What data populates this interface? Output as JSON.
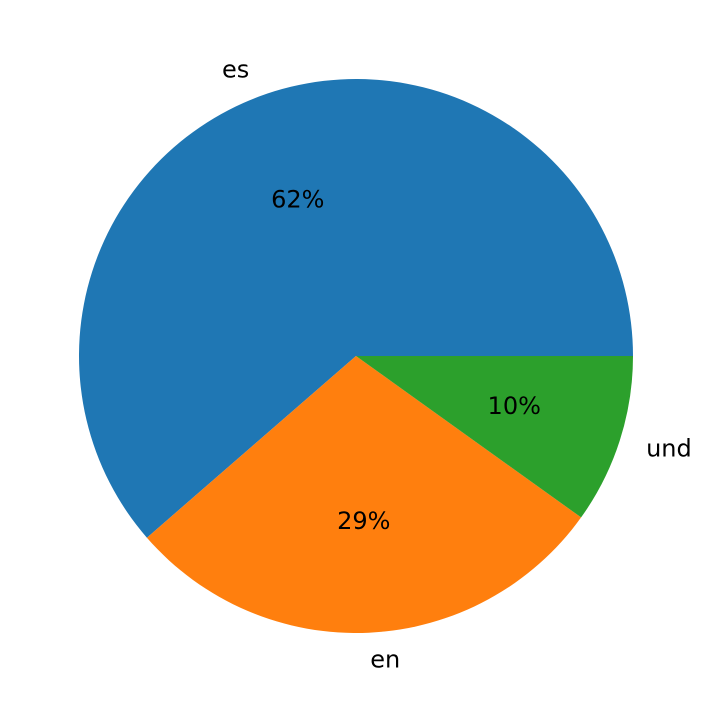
{
  "chart_data": {
    "type": "pie",
    "categories": [
      "es",
      "en",
      "und"
    ],
    "values": [
      62,
      29,
      10
    ],
    "value_labels": [
      "62%",
      "29%",
      "10%"
    ],
    "colors": [
      "#1f77b4",
      "#ff7f0e",
      "#2ca02c"
    ]
  }
}
